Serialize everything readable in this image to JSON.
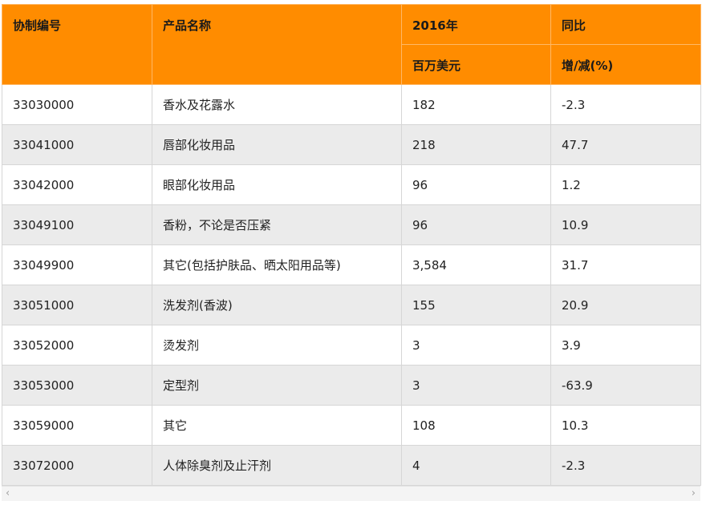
{
  "table": {
    "headers": {
      "code": "协制编号",
      "name": "产品名称",
      "year": "2016年",
      "yoy": "同比",
      "unit": "百万美元",
      "change": "增/减(%)"
    },
    "rows": [
      {
        "code": "33030000",
        "name": "香水及花露水",
        "value": "182",
        "yoy": "-2.3"
      },
      {
        "code": "33041000",
        "name": "唇部化妆用品",
        "value": "218",
        "yoy": "47.7"
      },
      {
        "code": "33042000",
        "name": "眼部化妆用品",
        "value": "96",
        "yoy": "1.2"
      },
      {
        "code": "33049100",
        "name": "香粉，不论是否压紧",
        "value": "96",
        "yoy": "10.9"
      },
      {
        "code": "33049900",
        "name": "其它(包括护肤品、晒太阳用品等)",
        "value": "3,584",
        "yoy": "31.7"
      },
      {
        "code": "33051000",
        "name": "洗发剂(香波)",
        "value": "155",
        "yoy": "20.9"
      },
      {
        "code": "33052000",
        "name": "烫发剂",
        "value": "3",
        "yoy": "3.9"
      },
      {
        "code": "33053000",
        "name": "定型剂",
        "value": "3",
        "yoy": "-63.9"
      },
      {
        "code": "33059000",
        "name": "其它",
        "value": "108",
        "yoy": "10.3"
      },
      {
        "code": "33072000",
        "name": "人体除臭剂及止汗剂",
        "value": "4",
        "yoy": "-2.3"
      }
    ]
  },
  "scrollbar": {
    "left_icon": "chevron-left-icon",
    "right_icon": "chevron-right-icon",
    "left_glyph": "‹",
    "right_glyph": "›"
  },
  "colors": {
    "header_bg": "#ff8c00",
    "row_alt_bg": "#ebebeb"
  }
}
